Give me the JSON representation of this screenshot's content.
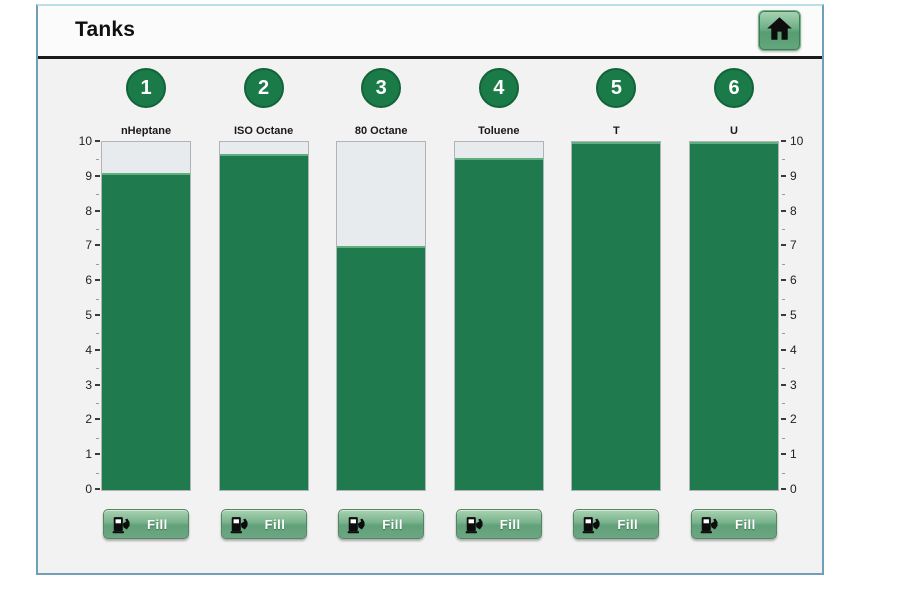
{
  "header": {
    "title": "Tanks"
  },
  "icons": {
    "home": "home-icon",
    "fuel_pump": "fuel-pump-icon"
  },
  "axis": {
    "min": 0,
    "max": 10,
    "step": 1,
    "minor_step": 0.5
  },
  "fill_button": {
    "label": "Fill"
  },
  "tanks": [
    {
      "number": "1",
      "label": "nHeptane",
      "level": 9.1
    },
    {
      "number": "2",
      "label": "ISO Octane",
      "level": 9.65
    },
    {
      "number": "3",
      "label": "80 Octane",
      "level": 7.0
    },
    {
      "number": "4",
      "label": "Toluene",
      "level": 9.55
    },
    {
      "number": "5",
      "label": "T",
      "level": 10
    },
    {
      "number": "6",
      "label": "U",
      "level": 10
    }
  ],
  "colors": {
    "tank_green": "#1f7b4d",
    "fill_top_highlight": "#5fae7e",
    "badge_green": "#1b7b48",
    "empty_gray": "#e8ebee",
    "panel_bg": "#f2f2f2",
    "header_bg": "#fbfbfb",
    "border_blue": "#6fa0b8"
  },
  "chart_data": {
    "type": "bar",
    "categories": [
      "nHeptane",
      "ISO Octane",
      "80 Octane",
      "Toluene",
      "T",
      "U"
    ],
    "values": [
      9.1,
      9.65,
      7.0,
      9.55,
      10,
      10
    ],
    "title": "Tanks",
    "xlabel": "",
    "ylabel": "",
    "ylim": [
      0,
      10
    ],
    "tick_step": 1,
    "legend": "none",
    "axis_sides": "left-and-right"
  }
}
